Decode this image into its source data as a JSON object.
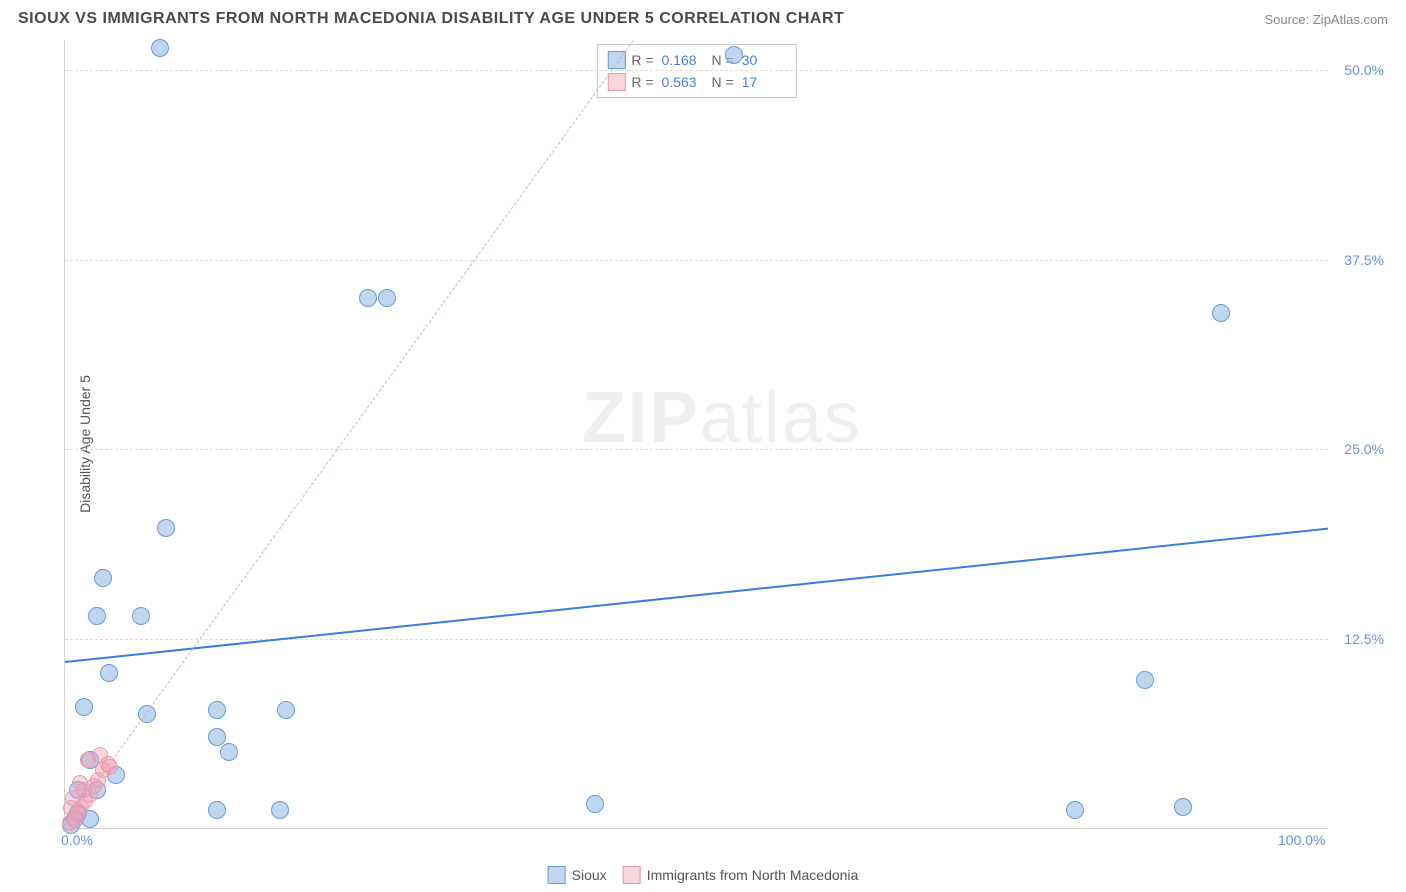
{
  "header": {
    "title": "SIOUX VS IMMIGRANTS FROM NORTH MACEDONIA DISABILITY AGE UNDER 5 CORRELATION CHART",
    "source": "Source: ZipAtlas.com"
  },
  "chart": {
    "type": "scatter",
    "ylabel": "Disability Age Under 5",
    "watermark_bold": "ZIP",
    "watermark_rest": "atlas",
    "xlim": [
      0,
      100
    ],
    "ylim": [
      0,
      52
    ],
    "xticks": [
      {
        "v": 0,
        "label": "0.0%"
      },
      {
        "v": 100,
        "label": "100.0%"
      }
    ],
    "yticks": [
      {
        "v": 12.5,
        "label": "12.5%"
      },
      {
        "v": 25.0,
        "label": "25.0%"
      },
      {
        "v": 37.5,
        "label": "37.5%"
      },
      {
        "v": 50.0,
        "label": "50.0%"
      }
    ],
    "grid_color": "#dcdcdc",
    "background_color": "#ffffff",
    "axis_text_color": "#6b8fd8",
    "series": [
      {
        "name": "Sioux",
        "marker_fill": "rgba(140,180,230,0.55)",
        "marker_stroke": "#6b9bd4",
        "marker_radius": 9,
        "line_color": "#3a7de0",
        "line_width": 2.5,
        "line_dash": "solid",
        "R": "0.168",
        "N": "30",
        "trend": {
          "x1": 0,
          "y1": 11.0,
          "x2": 100,
          "y2": 19.8
        },
        "points": [
          {
            "x": 7.5,
            "y": 51.5
          },
          {
            "x": 53.0,
            "y": 51.0
          },
          {
            "x": 24.0,
            "y": 35.0
          },
          {
            "x": 25.5,
            "y": 35.0
          },
          {
            "x": 91.5,
            "y": 34.0
          },
          {
            "x": 8.0,
            "y": 19.8
          },
          {
            "x": 3.0,
            "y": 16.5
          },
          {
            "x": 2.5,
            "y": 14.0
          },
          {
            "x": 6.0,
            "y": 14.0
          },
          {
            "x": 3.5,
            "y": 10.2
          },
          {
            "x": 85.5,
            "y": 9.8
          },
          {
            "x": 1.5,
            "y": 8.0
          },
          {
            "x": 6.5,
            "y": 7.5
          },
          {
            "x": 12.0,
            "y": 7.8
          },
          {
            "x": 17.5,
            "y": 7.8
          },
          {
            "x": 12.0,
            "y": 6.0
          },
          {
            "x": 13.0,
            "y": 5.0
          },
          {
            "x": 2.0,
            "y": 4.5
          },
          {
            "x": 4.0,
            "y": 3.5
          },
          {
            "x": 1.0,
            "y": 2.5
          },
          {
            "x": 2.5,
            "y": 2.5
          },
          {
            "x": 42.0,
            "y": 1.6
          },
          {
            "x": 88.5,
            "y": 1.4
          },
          {
            "x": 80.0,
            "y": 1.2
          },
          {
            "x": 12.0,
            "y": 1.2
          },
          {
            "x": 17.0,
            "y": 1.2
          },
          {
            "x": 1.0,
            "y": 1.0
          },
          {
            "x": 0.8,
            "y": 0.6
          },
          {
            "x": 2.0,
            "y": 0.6
          },
          {
            "x": 0.5,
            "y": 0.2
          }
        ]
      },
      {
        "name": "Immigrants from North Macedonia",
        "marker_fill": "rgba(240,160,180,0.45)",
        "marker_stroke": "#e89ab0",
        "marker_radius": 8,
        "line_color": "#e8a8b8",
        "line_width": 1.2,
        "line_dash": "dashed",
        "R": "0.563",
        "N": "17",
        "trend": {
          "x1": 0,
          "y1": 0.2,
          "x2": 45,
          "y2": 52
        },
        "points": [
          {
            "x": 0.4,
            "y": 0.3
          },
          {
            "x": 0.8,
            "y": 0.5
          },
          {
            "x": 1.0,
            "y": 1.0
          },
          {
            "x": 1.3,
            "y": 1.4
          },
          {
            "x": 1.6,
            "y": 1.8
          },
          {
            "x": 2.0,
            "y": 2.2
          },
          {
            "x": 2.3,
            "y": 2.8
          },
          {
            "x": 2.6,
            "y": 3.2
          },
          {
            "x": 1.2,
            "y": 3.0
          },
          {
            "x": 0.6,
            "y": 2.0
          },
          {
            "x": 3.0,
            "y": 3.8
          },
          {
            "x": 3.4,
            "y": 4.2
          },
          {
            "x": 1.8,
            "y": 4.5
          },
          {
            "x": 2.8,
            "y": 4.8
          },
          {
            "x": 3.6,
            "y": 4.0
          },
          {
            "x": 0.5,
            "y": 1.3
          },
          {
            "x": 1.5,
            "y": 2.5
          }
        ]
      }
    ],
    "legend_top_swatch_colors": [
      {
        "fill": "rgba(140,180,230,0.55)",
        "stroke": "#6b9bd4"
      },
      {
        "fill": "rgba(240,160,180,0.45)",
        "stroke": "#e89ab0"
      }
    ],
    "legend_bottom": [
      {
        "label": "Sioux",
        "fill": "rgba(140,180,230,0.55)",
        "stroke": "#6b9bd4"
      },
      {
        "label": "Immigrants from North Macedonia",
        "fill": "rgba(240,160,180,0.45)",
        "stroke": "#e89ab0"
      }
    ]
  }
}
